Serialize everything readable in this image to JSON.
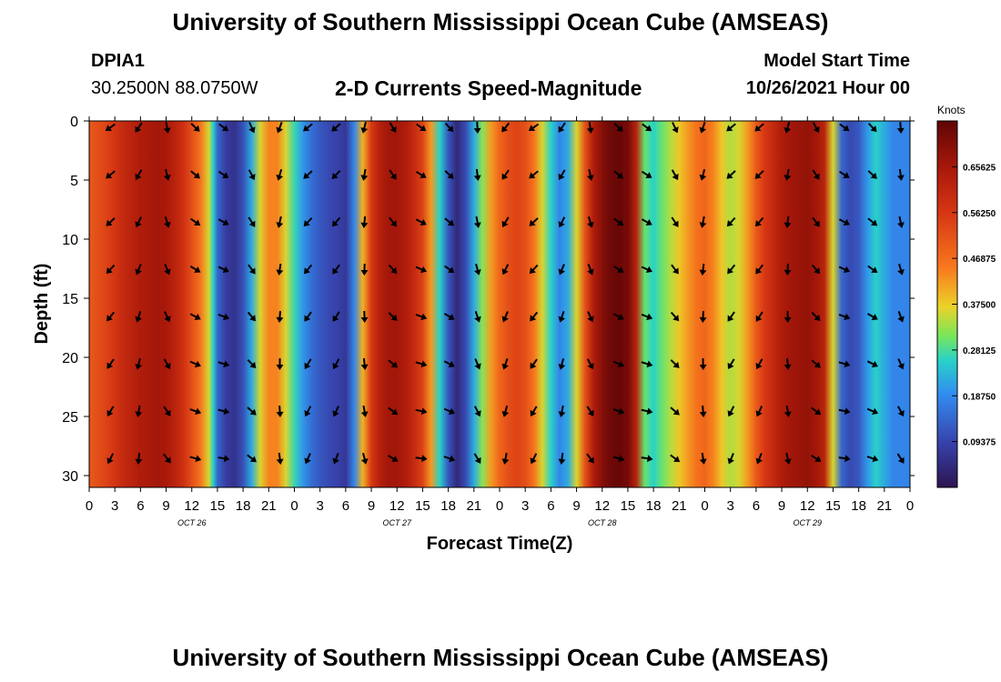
{
  "header": {
    "title": "University of Southern Mississippi Ocean Cube (AMSEAS)",
    "station_id": "DPIA1",
    "location": "30.2500N  88.0750W",
    "subtitle": "2-D Currents Speed-Magnitude",
    "model_start_label": "Model Start Time",
    "model_start_value": "10/26/2021 Hour 00"
  },
  "footer": {
    "title_repeat": "University of Southern Mississippi Ocean Cube (AMSEAS)"
  },
  "chart_data": {
    "type": "heatmap",
    "title": "2-D Currents Speed-Magnitude",
    "xlabel": "Forecast Time(Z)",
    "ylabel": "Depth (ft)",
    "x_tick_labels": [
      "0",
      "3",
      "6",
      "9",
      "12",
      "15",
      "18",
      "21",
      "0",
      "3",
      "6",
      "9",
      "12",
      "15",
      "18",
      "21",
      "0",
      "3",
      "6",
      "9",
      "12",
      "15",
      "18",
      "21",
      "0",
      "3",
      "6",
      "9",
      "12",
      "15",
      "18",
      "21",
      "0"
    ],
    "x_range_hours": [
      0,
      96
    ],
    "day_labels": [
      {
        "label": "OCT 26",
        "hour": 12
      },
      {
        "label": "OCT 27",
        "hour": 36
      },
      {
        "label": "OCT 28",
        "hour": 60
      },
      {
        "label": "OCT 29",
        "hour": 84
      }
    ],
    "y_ticks": [
      0,
      5,
      10,
      15,
      20,
      25,
      30
    ],
    "ylim": [
      0,
      31
    ],
    "colorbar": {
      "unit": "Knots",
      "min": 0.0,
      "max": 0.75,
      "tick_labels": [
        "0.65625",
        "0.56250",
        "0.46875",
        "0.37500",
        "0.28125",
        "0.18750",
        "0.09375"
      ],
      "tick_values": [
        0.65625,
        0.5625,
        0.46875,
        0.375,
        0.28125,
        0.1875,
        0.09375
      ]
    },
    "arrow_depths_ft": [
      0,
      4,
      8,
      12,
      16,
      20,
      24,
      28
    ],
    "speed_by_hour": [
      [
        0,
        0.5
      ],
      [
        1,
        0.52
      ],
      [
        2,
        0.54
      ],
      [
        3,
        0.57
      ],
      [
        4,
        0.6
      ],
      [
        5,
        0.62
      ],
      [
        6,
        0.64
      ],
      [
        7,
        0.65
      ],
      [
        8,
        0.66
      ],
      [
        9,
        0.65
      ],
      [
        10,
        0.62
      ],
      [
        11,
        0.58
      ],
      [
        12,
        0.52
      ],
      [
        13,
        0.46
      ],
      [
        14,
        0.36
      ],
      [
        14.5,
        0.26
      ],
      [
        15,
        0.14
      ],
      [
        16,
        0.08
      ],
      [
        17,
        0.06
      ],
      [
        18,
        0.11
      ],
      [
        19,
        0.22
      ],
      [
        20,
        0.36
      ],
      [
        21,
        0.44
      ],
      [
        22,
        0.44
      ],
      [
        23,
        0.36
      ],
      [
        24,
        0.27
      ],
      [
        25,
        0.2
      ],
      [
        26,
        0.15
      ],
      [
        27,
        0.12
      ],
      [
        28,
        0.1
      ],
      [
        29,
        0.09
      ],
      [
        30,
        0.07
      ],
      [
        31,
        0.18
      ],
      [
        32,
        0.4
      ],
      [
        33,
        0.56
      ],
      [
        34,
        0.63
      ],
      [
        35,
        0.66
      ],
      [
        36,
        0.66
      ],
      [
        37,
        0.64
      ],
      [
        38,
        0.6
      ],
      [
        39,
        0.54
      ],
      [
        40,
        0.42
      ],
      [
        41,
        0.26
      ],
      [
        42,
        0.12
      ],
      [
        43,
        0.04
      ],
      [
        44,
        0.1
      ],
      [
        45,
        0.22
      ],
      [
        46,
        0.32
      ],
      [
        47,
        0.42
      ],
      [
        48,
        0.48
      ],
      [
        49,
        0.52
      ],
      [
        50,
        0.54
      ],
      [
        51,
        0.52
      ],
      [
        52,
        0.46
      ],
      [
        53,
        0.36
      ],
      [
        54,
        0.26
      ],
      [
        55,
        0.18
      ],
      [
        56,
        0.22
      ],
      [
        57,
        0.36
      ],
      [
        58,
        0.52
      ],
      [
        59,
        0.64
      ],
      [
        60,
        0.7
      ],
      [
        61,
        0.73
      ],
      [
        62,
        0.74
      ],
      [
        63,
        0.72
      ],
      [
        64,
        0.62
      ],
      [
        65,
        0.3
      ],
      [
        66,
        0.26
      ],
      [
        67,
        0.3
      ],
      [
        68,
        0.34
      ],
      [
        69,
        0.38
      ],
      [
        70,
        0.42
      ],
      [
        71,
        0.46
      ],
      [
        72,
        0.48
      ],
      [
        73,
        0.44
      ],
      [
        74,
        0.38
      ],
      [
        75,
        0.34
      ],
      [
        76,
        0.36
      ],
      [
        77,
        0.42
      ],
      [
        78,
        0.5
      ],
      [
        79,
        0.56
      ],
      [
        80,
        0.6
      ],
      [
        81,
        0.64
      ],
      [
        82,
        0.66
      ],
      [
        83,
        0.67
      ],
      [
        84,
        0.68
      ],
      [
        85,
        0.66
      ],
      [
        86,
        0.62
      ],
      [
        87,
        0.36
      ],
      [
        88,
        0.14
      ],
      [
        89,
        0.1
      ],
      [
        90,
        0.12
      ],
      [
        91,
        0.2
      ],
      [
        92,
        0.26
      ],
      [
        93,
        0.22
      ],
      [
        94,
        0.18
      ],
      [
        95,
        0.18
      ],
      [
        96,
        0.18
      ]
    ]
  }
}
